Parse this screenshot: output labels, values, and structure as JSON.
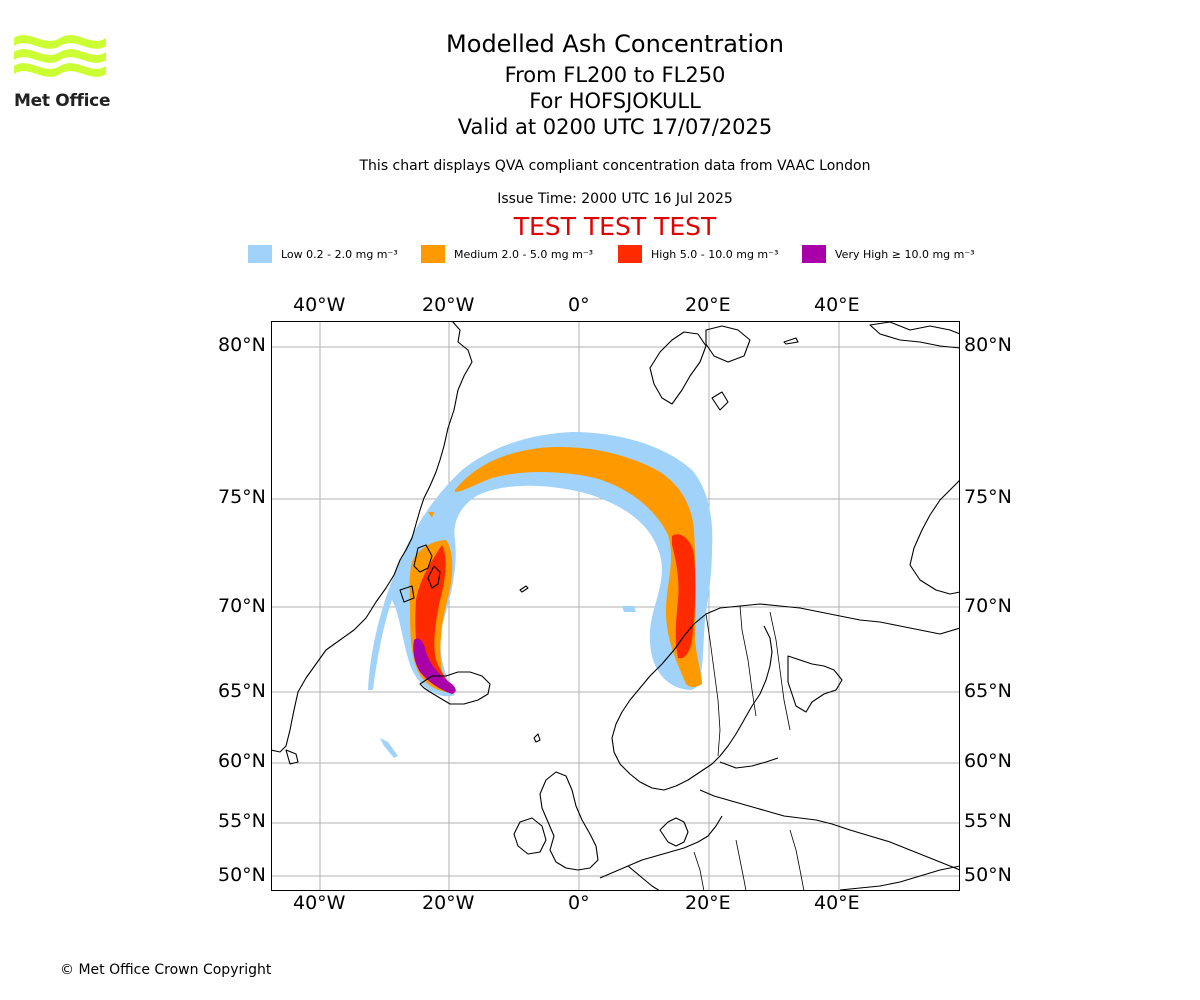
{
  "logo": {
    "text": "Met Office",
    "wave_color": "#ccff33"
  },
  "header": {
    "title": "Modelled Ash Concentration",
    "levels": "From FL200 to FL250",
    "volcano": "For HOFSJOKULL",
    "valid": "Valid at 0200 UTC 17/07/2025",
    "description": "This chart displays QVA compliant concentration data from VAAC London",
    "issue_time": "Issue Time: 2000 UTC 16 Jul 2025",
    "test_banner": "TEST TEST TEST",
    "test_color": "#e00000"
  },
  "legend": [
    {
      "label": "Low 0.2 - 2.0 mg m⁻³",
      "color": "#a0d2fa"
    },
    {
      "label": "Medium 2.0 - 5.0 mg m⁻³",
      "color": "#ff9900"
    },
    {
      "label": "High 5.0 - 10.0 mg m⁻³",
      "color": "#ff2a00"
    },
    {
      "label": "Very High ≥ 10.0 mg m⁻³",
      "color": "#aa00aa"
    }
  ],
  "map": {
    "top_lon_labels": [
      "40°W",
      "20°W",
      "0°",
      "20°E",
      "40°E"
    ],
    "bottom_lon_labels": [
      "40°W",
      "20°W",
      "0°",
      "20°E",
      "40°E"
    ],
    "lat_labels": [
      "80°N",
      "75°N",
      "70°N",
      "65°N",
      "60°N",
      "55°N",
      "50°N"
    ],
    "grid": true,
    "regions_shown": [
      "Greenland",
      "Iceland",
      "Svalbard",
      "Scandinavia",
      "British Isles",
      "Europe"
    ]
  },
  "footer": {
    "copyright": "© Met Office Crown Copyright"
  }
}
